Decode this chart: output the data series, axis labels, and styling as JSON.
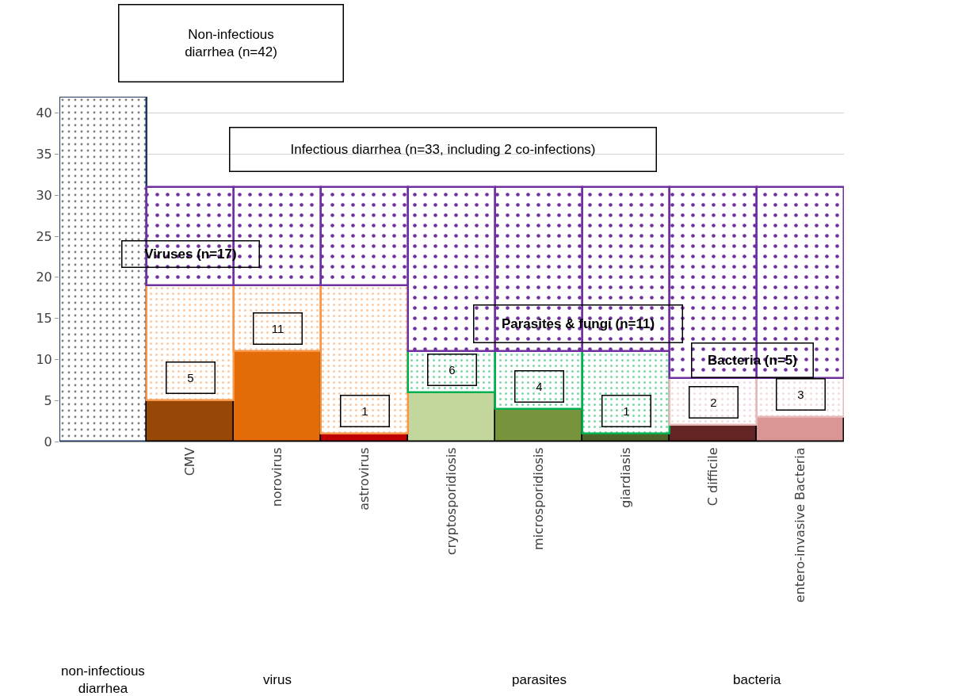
{
  "chart_data": {
    "type": "bar",
    "categories": [
      null,
      "CMV",
      "norovirus",
      "astrovirus",
      "cryptosporidiosis",
      "microsporidiosis",
      "giardiasis",
      "C difficile",
      "entero-invasive Bacteria"
    ],
    "series": [
      {
        "color": "#1f3864",
        "values": [
          42,
          null,
          null,
          null,
          null,
          null,
          null,
          null,
          null
        ]
      },
      {
        "colors": [
          "#ffffff",
          "#974706",
          "#e36c09",
          "#c00000",
          "#c3d69b",
          "#77933c",
          "#4f6228",
          "#632523",
          "#d99694"
        ],
        "values": [
          null,
          5,
          11,
          1,
          6,
          4,
          1,
          2,
          3
        ],
        "value_labels": [
          null,
          "5",
          "11",
          "1",
          "6",
          "4",
          "1",
          "2",
          "3"
        ]
      },
      {
        "colors": [
          "#ffffff",
          "#f79646",
          "#f79646",
          "#f79646",
          "#00b050",
          "#00b050",
          "#00b050",
          "#e6b9b8",
          "#e6b9b8"
        ],
        "values": [
          null,
          14,
          8,
          18,
          5,
          7,
          10,
          5.7,
          4.7
        ]
      },
      {
        "color": "#7030a0",
        "values": [
          null,
          12,
          12,
          12,
          20,
          20,
          20,
          23.3,
          23.3
        ]
      }
    ],
    "annotations": [
      "Non-infectious diarrhea (n=42)",
      "Infectious diarrhea (n=33, including 2 co-infections)",
      "Viruses (n=17)",
      "Parasites & fungi (n=11)",
      "Bacteria (n=5)",
      "non-infectious diarrhea",
      "virus",
      "parasites",
      "bacteria"
    ],
    "ylim": [
      0,
      42
    ],
    "yticks": [
      0,
      5,
      10,
      15,
      20,
      25,
      30,
      35,
      40
    ],
    "grid": "y",
    "stacked": true
  }
}
